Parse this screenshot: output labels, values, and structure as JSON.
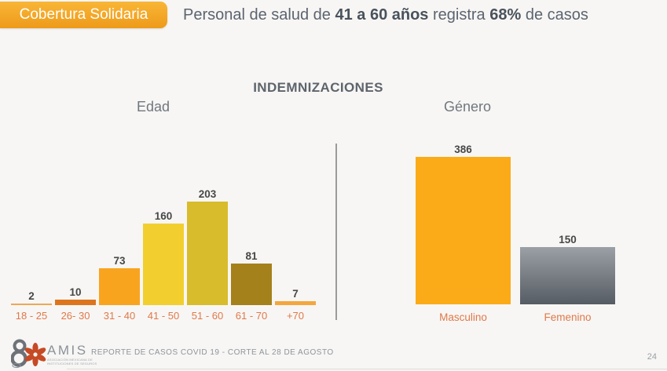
{
  "badge": {
    "label": "Cobertura Solidaria"
  },
  "header": {
    "p1": "Personal de salud de ",
    "b1": "41 a 60 años",
    "p2": " registra ",
    "b2": "68%",
    "p3": " de casos"
  },
  "title": "INDEMNIZACIONES",
  "chart_data": [
    {
      "type": "bar",
      "title": "Edad",
      "categories": [
        "18 - 25",
        "26- 30",
        "31 - 40",
        "41 - 50",
        "51 - 60",
        "61 - 70",
        "+70"
      ],
      "values": [
        2,
        10,
        73,
        160,
        203,
        81,
        7
      ],
      "bar_colors": [
        "#efa757",
        "#dd751e",
        "#f9a41f",
        "#f2cf2e",
        "#d8bc2c",
        "#a5811b",
        "#f4a73f"
      ],
      "value_label_color": "#474747",
      "category_label_color": "#e0794a",
      "xlabel": "",
      "ylabel": "",
      "ylim": [
        0,
        210
      ],
      "grid": false,
      "legend": false
    },
    {
      "type": "bar",
      "title": "Género",
      "categories": [
        "Masculino",
        "Femenino"
      ],
      "values": [
        386,
        150
      ],
      "bar_colors": [
        "#fbab18",
        "gradient:#9aa0a5,#565c63"
      ],
      "value_label_color": "#474747",
      "category_label_color": "#e0794a",
      "xlabel": "",
      "ylabel": "",
      "ylim": [
        0,
        400
      ],
      "grid": false,
      "legend": false
    }
  ],
  "footer": {
    "logo_name": "AMIS",
    "logo_tagline_line1": "ASOCIACIÓN MEXICANA DE",
    "logo_tagline_line2": "INSTITUCIONES DE SEGUROS",
    "report": "REPORTE DE CASOS COVID 19 - CORTE AL 28 DE AGOSTO",
    "page": "24"
  },
  "colors": {
    "background": "#f7f6f4",
    "badge_gradient_top": "#f9b637",
    "badge_gradient_bottom": "#ee9a19",
    "headline_text": "#5b6470",
    "title_text": "#5d646c",
    "section_label_text": "#70777f",
    "divider": "#9b9b9b",
    "footer_text": "#8e959c"
  }
}
